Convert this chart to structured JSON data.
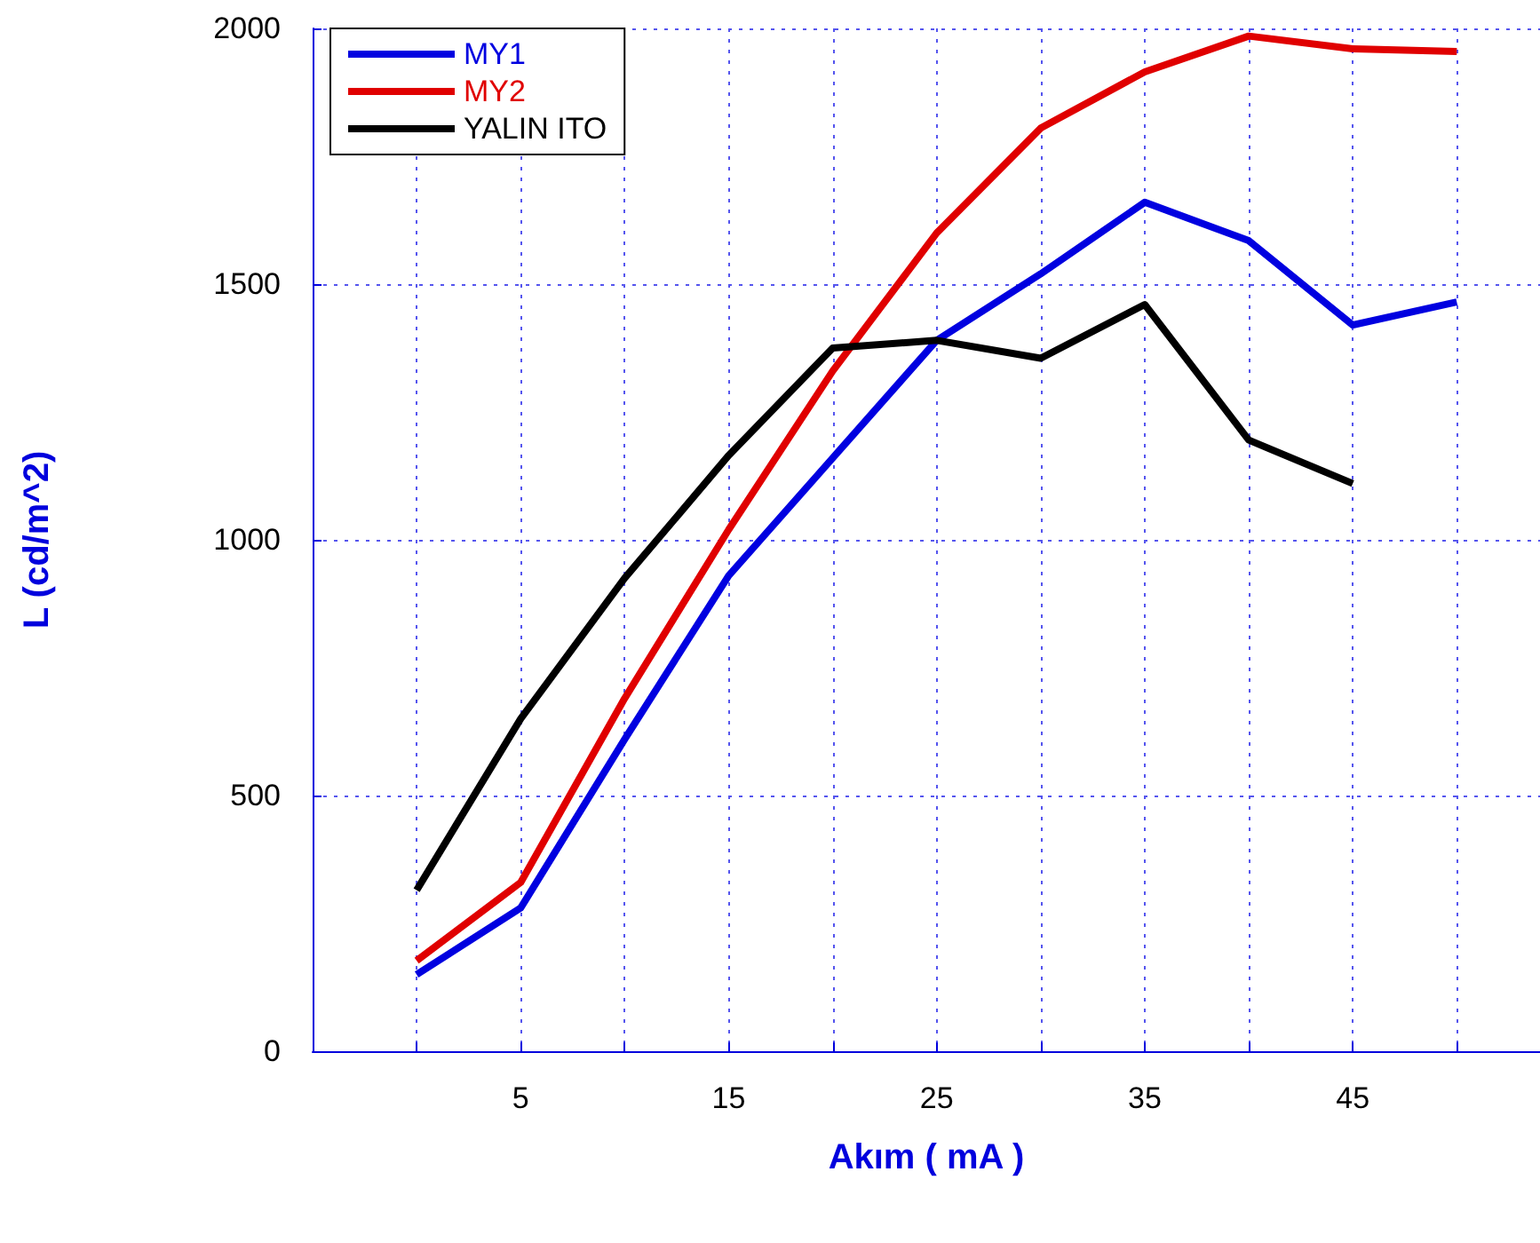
{
  "chart_data": {
    "type": "line",
    "xlabel": "Akım ( mA )",
    "ylabel": "L (cd/m^2)",
    "x": [
      0,
      5,
      10,
      15,
      20,
      25,
      30,
      35,
      40,
      45,
      50
    ],
    "series": [
      {
        "name": "MY1",
        "color": "#0000e0",
        "values": [
          150,
          280,
          610,
          930,
          1160,
          1390,
          1520,
          1660,
          1585,
          1420,
          1465
        ]
      },
      {
        "name": "MY2",
        "color": "#e00000",
        "values": [
          177,
          330,
          690,
          1020,
          1330,
          1600,
          1805,
          1915,
          1985,
          1960,
          1955
        ]
      },
      {
        "name": "YALIN ITO",
        "color": "#000000",
        "values": [
          315,
          650,
          925,
          1165,
          1375,
          1390,
          1355,
          1460,
          1195,
          1110,
          null
        ]
      }
    ],
    "xlim": [
      -5,
      54
    ],
    "xticks": [
      {
        "value": 0,
        "label": null
      },
      5,
      {
        "value": 10,
        "label": null
      },
      15,
      {
        "value": 20,
        "label": null
      },
      25,
      {
        "value": 30,
        "label": null
      },
      35,
      {
        "value": 40,
        "label": null
      },
      45,
      {
        "value": 50,
        "label": null
      }
    ],
    "ylim": [
      0,
      2000
    ],
    "yticks": [
      0,
      500,
      1000,
      1500,
      2000
    ],
    "grid": true,
    "legend": "top left",
    "marker": "none",
    "line_style": "solid"
  }
}
